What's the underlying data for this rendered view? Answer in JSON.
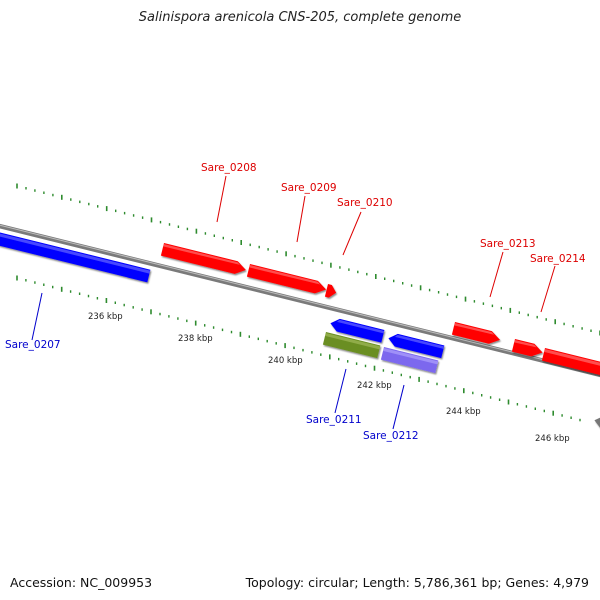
{
  "title": "Salinispora arenicola CNS-205, complete genome",
  "footer": {
    "accession": "Accession: NC_009953",
    "summary": "Topology: circular; Length: 5,786,361 bp; Genes: 4,979"
  },
  "colors": {
    "forward_gene": "#ff0000",
    "reverse_gene": "#0000ff",
    "rna_gene": "#6b8e23",
    "other_gene": "#7b68ee",
    "tick": "#2e8b2e",
    "backbone": "#888888",
    "forward_label": "#dd0000",
    "reverse_label": "#0000cc"
  },
  "scale_labels": [
    "236 kbp",
    "238 kbp",
    "240 kbp",
    "242 kbp",
    "244 kbp",
    "246 kbp"
  ],
  "genes": [
    {
      "label": "Sare_0207",
      "strand": "reverse",
      "type": "cds"
    },
    {
      "label": "Sare_0208",
      "strand": "forward",
      "type": "cds"
    },
    {
      "label": "Sare_0209",
      "strand": "forward",
      "type": "cds"
    },
    {
      "label": "Sare_0210",
      "strand": "forward",
      "type": "cds"
    },
    {
      "label": "Sare_0211",
      "strand": "reverse",
      "type": "cds"
    },
    {
      "label": "Sare_0212",
      "strand": "reverse",
      "type": "cds"
    },
    {
      "label": "Sare_0213",
      "strand": "forward",
      "type": "cds"
    },
    {
      "label": "Sare_0214",
      "strand": "forward",
      "type": "cds"
    }
  ]
}
